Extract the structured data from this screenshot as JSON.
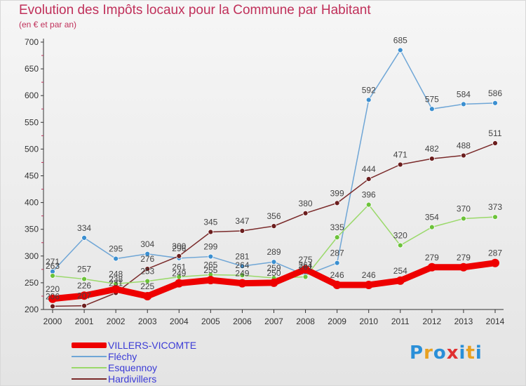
{
  "header": {
    "title": "Evolution des Impôts locaux pour la Commune par Habitant",
    "subtitle": "(en € et par an)"
  },
  "logo": {
    "text": "Proxiti",
    "letter_colors": [
      "#2a8fd8",
      "#e8a020",
      "#2a8fd8",
      "#e03030",
      "#2a8fd8",
      "#e8a020",
      "#2a8fd8"
    ]
  },
  "chart_data": {
    "type": "line",
    "title": "Evolution des Impôts locaux pour la Commune par Habitant",
    "subtitle": "(en € et par an)",
    "xlabel": "",
    "ylabel": "",
    "ylim": [
      200,
      700
    ],
    "yticks": [
      200,
      250,
      300,
      350,
      400,
      450,
      500,
      550,
      600,
      650,
      700
    ],
    "grid": false,
    "legend_position": "bottom-left",
    "x": [
      "2000",
      "2001",
      "2002",
      "2003",
      "2004",
      "2005",
      "2006",
      "2007",
      "2008",
      "2009",
      "2010",
      "2011",
      "2012",
      "2013",
      "2014"
    ],
    "series": [
      {
        "name": "Fléchy",
        "color": "#6fa6d6",
        "marker": "#3b8fd0",
        "values": [
          271,
          334,
          295,
          304,
          296,
          299,
          281,
          289,
          264,
          287,
          592,
          685,
          575,
          584,
          586
        ],
        "labels": [
          "271",
          "334",
          "295",
          "304",
          "296",
          "299",
          "281",
          "289",
          "264",
          "287",
          "592",
          "685",
          "575",
          "584",
          "586"
        ]
      },
      {
        "name": "Hardivillers",
        "color": "#7a2a2a",
        "marker": "#6b1e1e",
        "values": [
          206,
          207,
          231,
          276,
          300,
          345,
          347,
          356,
          380,
          399,
          444,
          471,
          482,
          488,
          511
        ],
        "labels": [
          "206",
          "207",
          "231",
          "276",
          "300",
          "345",
          "347",
          "356",
          "380",
          "399",
          "444",
          "471",
          "482",
          "488",
          "511"
        ]
      },
      {
        "name": "Esquennoy",
        "color": "#9ad96a",
        "marker": "#6cc23a",
        "values": [
          263,
          257,
          248,
          253,
          261,
          265,
          264,
          259,
          261,
          335,
          396,
          320,
          354,
          370,
          373
        ],
        "labels": [
          "263",
          "257",
          "248",
          "253",
          "261",
          "265",
          "264",
          "259",
          "261",
          "335",
          "396",
          "320",
          "354",
          "370",
          "373"
        ]
      },
      {
        "name": "VILLERS-VICOMTE",
        "color": "#ee0000",
        "marker": "#ee0000",
        "values": [
          220,
          226,
          238,
          225,
          249,
          255,
          249,
          250,
          275,
          246,
          246,
          254,
          279,
          279,
          287
        ],
        "labels": [
          "220",
          "226",
          "238",
          "225",
          "249",
          "255",
          "249",
          "250",
          "275",
          "246",
          "246",
          "254",
          "279",
          "279",
          "287"
        ]
      }
    ]
  },
  "legend": {
    "items": [
      {
        "label": "VILLERS-VICOMTE",
        "color": "#ee0000"
      },
      {
        "label": "Fléchy",
        "color": "#6fa6d6"
      },
      {
        "label": "Esquennoy",
        "color": "#9ad96a"
      },
      {
        "label": "Hardivillers",
        "color": "#7a2a2a"
      }
    ]
  }
}
